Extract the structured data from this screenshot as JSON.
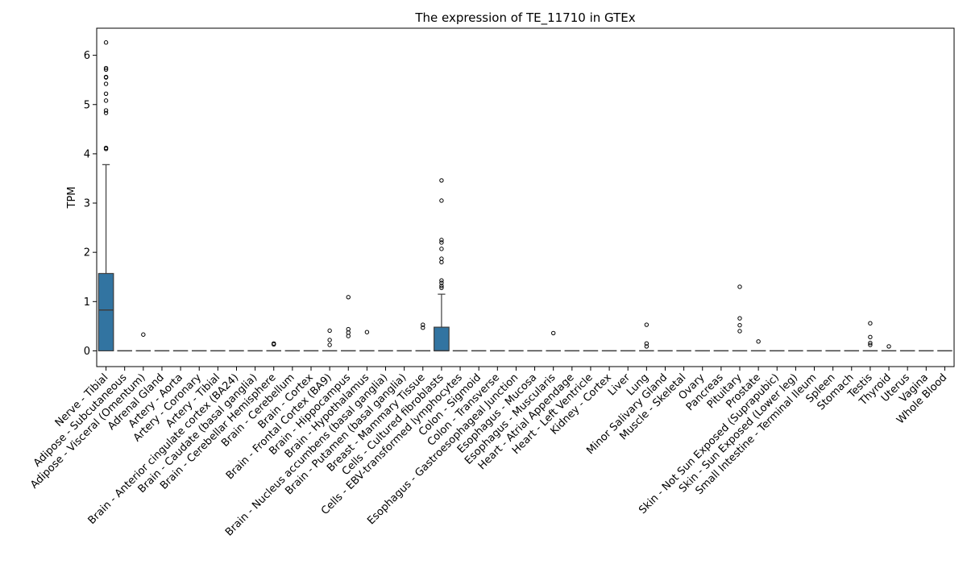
{
  "chart_data": {
    "type": "box",
    "title": "The expression of TE_11710 in GTEx",
    "xlabel": "",
    "ylabel": "TPM",
    "ylim": [
      -0.32,
      6.55
    ],
    "yticks": [
      0,
      1,
      2,
      3,
      4,
      5,
      6
    ],
    "grid": false,
    "legend": "none",
    "box_color": "#3274a1",
    "categories": [
      "Nerve - Tibial",
      "Adipose - Subcutaneous",
      "Adipose - Visceral (Omentum)",
      "Adrenal Gland",
      "Artery - Aorta",
      "Artery - Coronary",
      "Artery - Tibial",
      "Brain - Anterior cingulate cortex (BA24)",
      "Brain - Caudate (basal ganglia)",
      "Brain - Cerebellar Hemisphere",
      "Brain - Cerebellum",
      "Brain - Cortex",
      "Brain - Frontal Cortex (BA9)",
      "Brain - Hippocampus",
      "Brain - Hypothalamus",
      "Brain - Nucleus accumbens (basal ganglia)",
      "Brain - Putamen (basal ganglia)",
      "Breast - Mammary Tissue",
      "Cells - Cultured fibroblasts",
      "Cells - EBV-transformed lymphocytes",
      "Colon - Sigmoid",
      "Colon - Transverse",
      "Esophagus - Gastroesophageal Junction",
      "Esophagus - Mucosa",
      "Esophagus - Muscularis",
      "Heart - Atrial Appendage",
      "Heart - Left Ventricle",
      "Kidney - Cortex",
      "Liver",
      "Lung",
      "Minor Salivary Gland",
      "Muscle - Skeletal",
      "Ovary",
      "Pancreas",
      "Pituitary",
      "Prostate",
      "Skin - Not Sun Exposed (Suprapubic)",
      "Skin - Sun Exposed (Lower leg)",
      "Small Intestine - Terminal Ileum",
      "Spleen",
      "Stomach",
      "Testis",
      "Thyroid",
      "Uterus",
      "Vagina",
      "Whole Blood"
    ],
    "boxes": [
      {
        "q1": 0,
        "median": 0.83,
        "q3": 1.57,
        "whisker_low": 0,
        "whisker_high": 3.78,
        "outliers": [
          4.1,
          4.12,
          4.83,
          4.88,
          5.08,
          5.22,
          5.42,
          5.55,
          5.56,
          5.71,
          5.74,
          6.26
        ]
      },
      {
        "q1": 0,
        "median": 0,
        "q3": 0,
        "whisker_low": 0,
        "whisker_high": 0,
        "outliers": []
      },
      {
        "q1": 0,
        "median": 0,
        "q3": 0,
        "whisker_low": 0,
        "whisker_high": 0,
        "outliers": [
          0.33
        ]
      },
      {
        "q1": 0,
        "median": 0,
        "q3": 0,
        "whisker_low": 0,
        "whisker_high": 0,
        "outliers": []
      },
      {
        "q1": 0,
        "median": 0,
        "q3": 0,
        "whisker_low": 0,
        "whisker_high": 0,
        "outliers": []
      },
      {
        "q1": 0,
        "median": 0,
        "q3": 0,
        "whisker_low": 0,
        "whisker_high": 0,
        "outliers": []
      },
      {
        "q1": 0,
        "median": 0,
        "q3": 0,
        "whisker_low": 0,
        "whisker_high": 0,
        "outliers": []
      },
      {
        "q1": 0,
        "median": 0,
        "q3": 0,
        "whisker_low": 0,
        "whisker_high": 0,
        "outliers": []
      },
      {
        "q1": 0,
        "median": 0,
        "q3": 0,
        "whisker_low": 0,
        "whisker_high": 0,
        "outliers": []
      },
      {
        "q1": 0,
        "median": 0,
        "q3": 0,
        "whisker_low": 0,
        "whisker_high": 0,
        "outliers": [
          0.13,
          0.15
        ]
      },
      {
        "q1": 0,
        "median": 0,
        "q3": 0,
        "whisker_low": 0,
        "whisker_high": 0,
        "outliers": []
      },
      {
        "q1": 0,
        "median": 0,
        "q3": 0,
        "whisker_low": 0,
        "whisker_high": 0,
        "outliers": []
      },
      {
        "q1": 0,
        "median": 0,
        "q3": 0,
        "whisker_low": 0,
        "whisker_high": 0,
        "outliers": [
          0.12,
          0.22,
          0.41
        ]
      },
      {
        "q1": 0,
        "median": 0,
        "q3": 0,
        "whisker_low": 0,
        "whisker_high": 0,
        "outliers": [
          0.3,
          0.37,
          0.44,
          1.09
        ]
      },
      {
        "q1": 0,
        "median": 0,
        "q3": 0,
        "whisker_low": 0,
        "whisker_high": 0,
        "outliers": [
          0.38
        ]
      },
      {
        "q1": 0,
        "median": 0,
        "q3": 0,
        "whisker_low": 0,
        "whisker_high": 0,
        "outliers": []
      },
      {
        "q1": 0,
        "median": 0,
        "q3": 0,
        "whisker_low": 0,
        "whisker_high": 0,
        "outliers": []
      },
      {
        "q1": 0,
        "median": 0,
        "q3": 0,
        "whisker_low": 0,
        "whisker_high": 0,
        "outliers": [
          0.47,
          0.53
        ]
      },
      {
        "q1": 0,
        "median": 0,
        "q3": 0.48,
        "whisker_low": 0,
        "whisker_high": 1.15,
        "outliers": [
          1.28,
          1.32,
          1.38,
          1.43,
          1.8,
          1.87,
          2.07,
          2.2,
          2.25,
          3.05,
          3.46
        ]
      },
      {
        "q1": 0,
        "median": 0,
        "q3": 0,
        "whisker_low": 0,
        "whisker_high": 0,
        "outliers": []
      },
      {
        "q1": 0,
        "median": 0,
        "q3": 0,
        "whisker_low": 0,
        "whisker_high": 0,
        "outliers": []
      },
      {
        "q1": 0,
        "median": 0,
        "q3": 0,
        "whisker_low": 0,
        "whisker_high": 0,
        "outliers": []
      },
      {
        "q1": 0,
        "median": 0,
        "q3": 0,
        "whisker_low": 0,
        "whisker_high": 0,
        "outliers": []
      },
      {
        "q1": 0,
        "median": 0,
        "q3": 0,
        "whisker_low": 0,
        "whisker_high": 0,
        "outliers": []
      },
      {
        "q1": 0,
        "median": 0,
        "q3": 0,
        "whisker_low": 0,
        "whisker_high": 0,
        "outliers": [
          0.36
        ]
      },
      {
        "q1": 0,
        "median": 0,
        "q3": 0,
        "whisker_low": 0,
        "whisker_high": 0,
        "outliers": []
      },
      {
        "q1": 0,
        "median": 0,
        "q3": 0,
        "whisker_low": 0,
        "whisker_high": 0,
        "outliers": []
      },
      {
        "q1": 0,
        "median": 0,
        "q3": 0,
        "whisker_low": 0,
        "whisker_high": 0,
        "outliers": []
      },
      {
        "q1": 0,
        "median": 0,
        "q3": 0,
        "whisker_low": 0,
        "whisker_high": 0,
        "outliers": []
      },
      {
        "q1": 0,
        "median": 0,
        "q3": 0,
        "whisker_low": 0,
        "whisker_high": 0,
        "outliers": [
          0.09,
          0.15,
          0.53
        ]
      },
      {
        "q1": 0,
        "median": 0,
        "q3": 0,
        "whisker_low": 0,
        "whisker_high": 0,
        "outliers": []
      },
      {
        "q1": 0,
        "median": 0,
        "q3": 0,
        "whisker_low": 0,
        "whisker_high": 0,
        "outliers": []
      },
      {
        "q1": 0,
        "median": 0,
        "q3": 0,
        "whisker_low": 0,
        "whisker_high": 0,
        "outliers": []
      },
      {
        "q1": 0,
        "median": 0,
        "q3": 0,
        "whisker_low": 0,
        "whisker_high": 0,
        "outliers": []
      },
      {
        "q1": 0,
        "median": 0,
        "q3": 0,
        "whisker_low": 0,
        "whisker_high": 0,
        "outliers": [
          0.4,
          0.52,
          0.66,
          1.3
        ]
      },
      {
        "q1": 0,
        "median": 0,
        "q3": 0,
        "whisker_low": 0,
        "whisker_high": 0,
        "outliers": [
          0.19
        ]
      },
      {
        "q1": 0,
        "median": 0,
        "q3": 0,
        "whisker_low": 0,
        "whisker_high": 0,
        "outliers": []
      },
      {
        "q1": 0,
        "median": 0,
        "q3": 0,
        "whisker_low": 0,
        "whisker_high": 0,
        "outliers": []
      },
      {
        "q1": 0,
        "median": 0,
        "q3": 0,
        "whisker_low": 0,
        "whisker_high": 0,
        "outliers": []
      },
      {
        "q1": 0,
        "median": 0,
        "q3": 0,
        "whisker_low": 0,
        "whisker_high": 0,
        "outliers": []
      },
      {
        "q1": 0,
        "median": 0,
        "q3": 0,
        "whisker_low": 0,
        "whisker_high": 0,
        "outliers": []
      },
      {
        "q1": 0,
        "median": 0,
        "q3": 0,
        "whisker_low": 0,
        "whisker_high": 0,
        "outliers": [
          0.12,
          0.16,
          0.28,
          0.56
        ]
      },
      {
        "q1": 0,
        "median": 0,
        "q3": 0,
        "whisker_low": 0,
        "whisker_high": 0,
        "outliers": [
          0.09
        ]
      },
      {
        "q1": 0,
        "median": 0,
        "q3": 0,
        "whisker_low": 0,
        "whisker_high": 0,
        "outliers": []
      },
      {
        "q1": 0,
        "median": 0,
        "q3": 0,
        "whisker_low": 0,
        "whisker_high": 0,
        "outliers": []
      },
      {
        "q1": 0,
        "median": 0,
        "q3": 0,
        "whisker_low": 0,
        "whisker_high": 0,
        "outliers": []
      }
    ]
  }
}
